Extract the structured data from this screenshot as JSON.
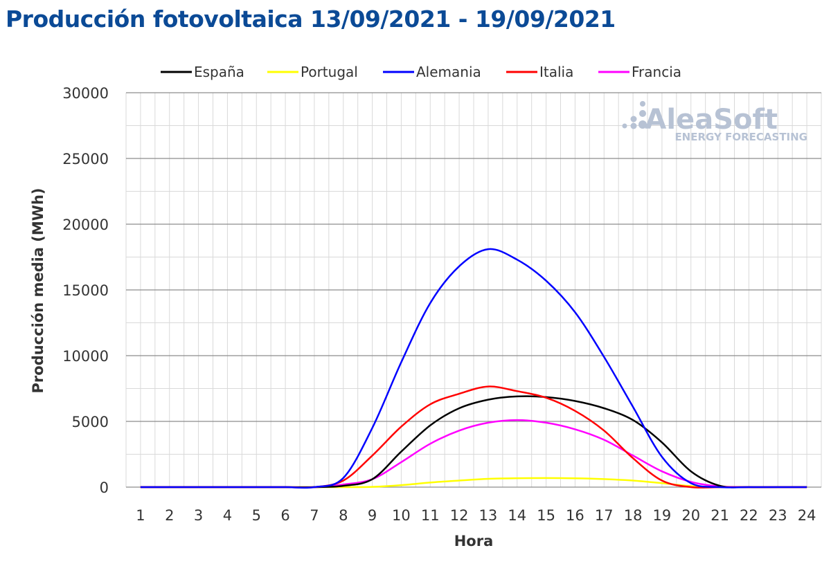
{
  "title": "Producción fotovoltaica 13/09/2021 - 19/09/2021",
  "watermark": {
    "brand": "AleaSoft",
    "subtitle": "ENERGY FORECASTING"
  },
  "chart_data": {
    "type": "line",
    "xlabel": "Hora",
    "ylabel": "Producción media (MWh)",
    "x": [
      1,
      2,
      3,
      4,
      5,
      6,
      7,
      8,
      9,
      10,
      11,
      12,
      13,
      14,
      15,
      16,
      17,
      18,
      19,
      20,
      21,
      22,
      23,
      24
    ],
    "ylim": [
      0,
      30000
    ],
    "yticks": [
      0,
      5000,
      10000,
      15000,
      20000,
      25000,
      30000
    ],
    "grid": true,
    "legend_position": "top",
    "series": [
      {
        "name": "España",
        "color": "#000000",
        "values": [
          0,
          0,
          0,
          0,
          0,
          0,
          0,
          100,
          600,
          2700,
          4700,
          6000,
          6650,
          6900,
          6850,
          6550,
          6000,
          5100,
          3400,
          1200,
          100,
          0,
          0,
          0
        ]
      },
      {
        "name": "Portugal",
        "color": "#ffff00",
        "values": [
          0,
          0,
          0,
          0,
          0,
          0,
          0,
          0,
          20,
          150,
          350,
          500,
          630,
          680,
          690,
          670,
          610,
          500,
          300,
          80,
          0,
          0,
          0,
          0
        ]
      },
      {
        "name": "Alemania",
        "color": "#0000ff",
        "values": [
          0,
          0,
          0,
          0,
          0,
          0,
          0,
          700,
          4500,
          9500,
          14000,
          16800,
          18100,
          17300,
          15700,
          13300,
          9900,
          6100,
          2300,
          300,
          0,
          0,
          0,
          0
        ]
      },
      {
        "name": "Italia",
        "color": "#ff0000",
        "values": [
          0,
          0,
          0,
          0,
          0,
          0,
          0,
          500,
          2400,
          4600,
          6300,
          7100,
          7650,
          7300,
          6800,
          5800,
          4300,
          2200,
          500,
          0,
          0,
          0,
          0,
          0
        ]
      },
      {
        "name": "Francia",
        "color": "#ff00ff",
        "values": [
          0,
          0,
          0,
          0,
          0,
          0,
          0,
          200,
          600,
          1900,
          3300,
          4300,
          4900,
          5100,
          4900,
          4400,
          3600,
          2400,
          1200,
          400,
          50,
          0,
          0,
          0
        ]
      }
    ]
  }
}
